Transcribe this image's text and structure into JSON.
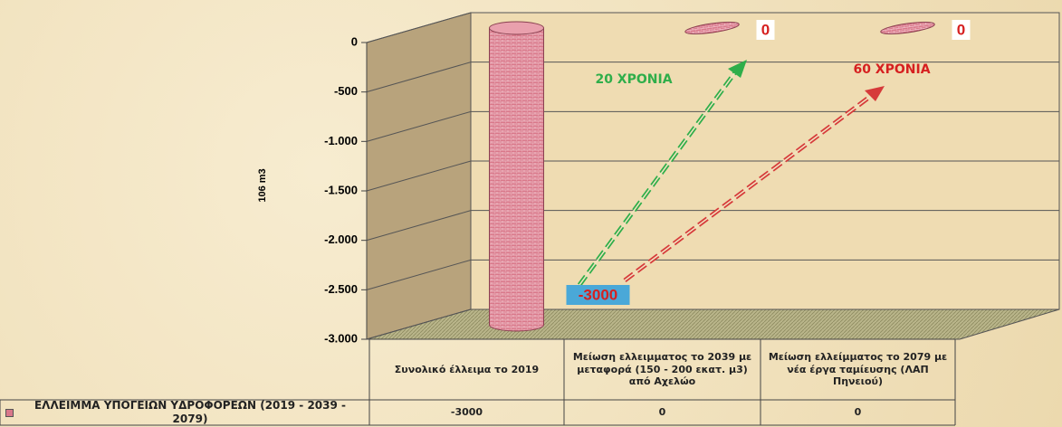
{
  "chart_data": {
    "type": "bar",
    "y_label": "106 m3",
    "categories": [
      "Συνολικό έλλειμα το 2019",
      "Μείωση ελλειμματος το 2039 με μεταφορά (150 - 200 εκατ. μ3) από Αχελώο",
      "Μείωση ελλείμματος το 2079 με νέα έργα ταμίευσης (ΛΑΠ Πηνειού)"
    ],
    "series": [
      {
        "name": "ΕΛΛΕΙΜΜΑ ΥΠΟΓΕΙΩΝ ΥΔΡΟΦΟΡΕΩΝ (2019 - 2039 - 2079)",
        "color": "#d9788a",
        "values": [
          -3000,
          0,
          0
        ]
      }
    ],
    "ylim": [
      -3000,
      0
    ],
    "yticks": [
      0,
      -500,
      {
        "value": -1000,
        "label": "-1.000"
      },
      {
        "value": -1500,
        "label": "-1.500"
      },
      {
        "value": -2000,
        "label": "-2.000"
      },
      {
        "value": -2500,
        "label": "-2.500"
      },
      {
        "value": -3000,
        "label": "-3.000"
      }
    ],
    "grid": true,
    "annotations": [
      "20 ΧΡΟΝΙΑ",
      "60 ΧΡΟΝΙΑ"
    ]
  }
}
